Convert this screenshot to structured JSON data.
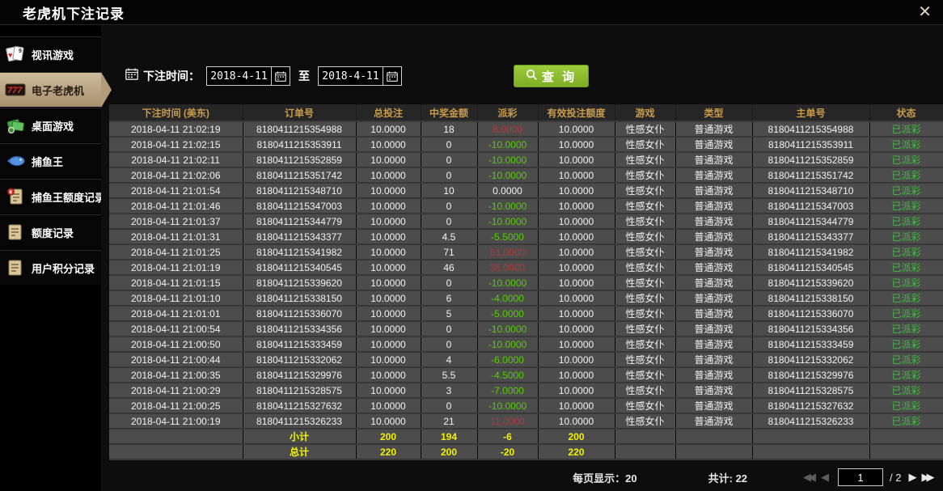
{
  "window": {
    "title": "老虎机下注记录",
    "close_label": "✕"
  },
  "sidebar": {
    "items": [
      {
        "label": "视讯游戏",
        "icon": "video-games-icon",
        "active": false
      },
      {
        "label": "电子老虎机",
        "icon": "slot-machine-icon",
        "active": true
      },
      {
        "label": "桌面游戏",
        "icon": "table-games-icon",
        "active": false
      },
      {
        "label": "捕鱼王",
        "icon": "fishing-king-icon",
        "active": false
      },
      {
        "label": "捕鱼王额度记录",
        "icon": "fishing-quota-record-icon",
        "active": false
      },
      {
        "label": "额度记录",
        "icon": "quota-record-icon",
        "active": false
      },
      {
        "label": "用户积分记录",
        "icon": "user-points-record-icon",
        "active": false
      }
    ]
  },
  "filter": {
    "label": "下注时间：",
    "from_date": "2018-4-11",
    "to_label": "至",
    "to_date": "2018-4-11",
    "query_label": "查 询"
  },
  "table": {
    "headers": [
      "下注时间 (美东)",
      "订单号",
      "总投注",
      "中奖金额",
      "派彩",
      "有效投注额度",
      "游戏",
      "类型",
      "主单号",
      "状态"
    ],
    "rows": [
      {
        "time": "2018-04-11 21:02:19",
        "order": "8180411215354988",
        "total_bet": "10.0000",
        "win": "18",
        "payout": "8.0000",
        "payout_color": "red",
        "valid_bet": "10.0000",
        "game": "性感女仆",
        "type": "普通游戏",
        "main_order": "8180411215354988",
        "status": "已派彩"
      },
      {
        "time": "2018-04-11 21:02:15",
        "order": "8180411215353911",
        "total_bet": "10.0000",
        "win": "0",
        "payout": "-10.0000",
        "payout_color": "green",
        "valid_bet": "10.0000",
        "game": "性感女仆",
        "type": "普通游戏",
        "main_order": "8180411215353911",
        "status": "已派彩"
      },
      {
        "time": "2018-04-11 21:02:11",
        "order": "8180411215352859",
        "total_bet": "10.0000",
        "win": "0",
        "payout": "-10.0000",
        "payout_color": "green",
        "valid_bet": "10.0000",
        "game": "性感女仆",
        "type": "普通游戏",
        "main_order": "8180411215352859",
        "status": "已派彩"
      },
      {
        "time": "2018-04-11 21:02:06",
        "order": "8180411215351742",
        "total_bet": "10.0000",
        "win": "0",
        "payout": "-10.0000",
        "payout_color": "green",
        "valid_bet": "10.0000",
        "game": "性感女仆",
        "type": "普通游戏",
        "main_order": "8180411215351742",
        "status": "已派彩"
      },
      {
        "time": "2018-04-11 21:01:54",
        "order": "8180411215348710",
        "total_bet": "10.0000",
        "win": "10",
        "payout": "0.0000",
        "payout_color": "white",
        "valid_bet": "10.0000",
        "game": "性感女仆",
        "type": "普通游戏",
        "main_order": "8180411215348710",
        "status": "已派彩"
      },
      {
        "time": "2018-04-11 21:01:46",
        "order": "8180411215347003",
        "total_bet": "10.0000",
        "win": "0",
        "payout": "-10.0000",
        "payout_color": "green",
        "valid_bet": "10.0000",
        "game": "性感女仆",
        "type": "普通游戏",
        "main_order": "8180411215347003",
        "status": "已派彩"
      },
      {
        "time": "2018-04-11 21:01:37",
        "order": "8180411215344779",
        "total_bet": "10.0000",
        "win": "0",
        "payout": "-10.0000",
        "payout_color": "green",
        "valid_bet": "10.0000",
        "game": "性感女仆",
        "type": "普通游戏",
        "main_order": "8180411215344779",
        "status": "已派彩"
      },
      {
        "time": "2018-04-11 21:01:31",
        "order": "8180411215343377",
        "total_bet": "10.0000",
        "win": "4.5",
        "payout": "-5.5000",
        "payout_color": "green",
        "valid_bet": "10.0000",
        "game": "性感女仆",
        "type": "普通游戏",
        "main_order": "8180411215343377",
        "status": "已派彩"
      },
      {
        "time": "2018-04-11 21:01:25",
        "order": "8180411215341982",
        "total_bet": "10.0000",
        "win": "71",
        "payout": "61.0000",
        "payout_color": "red",
        "valid_bet": "10.0000",
        "game": "性感女仆",
        "type": "普通游戏",
        "main_order": "8180411215341982",
        "status": "已派彩"
      },
      {
        "time": "2018-04-11 21:01:19",
        "order": "8180411215340545",
        "total_bet": "10.0000",
        "win": "46",
        "payout": "36.0000",
        "payout_color": "red",
        "valid_bet": "10.0000",
        "game": "性感女仆",
        "type": "普通游戏",
        "main_order": "8180411215340545",
        "status": "已派彩"
      },
      {
        "time": "2018-04-11 21:01:15",
        "order": "8180411215339620",
        "total_bet": "10.0000",
        "win": "0",
        "payout": "-10.0000",
        "payout_color": "green",
        "valid_bet": "10.0000",
        "game": "性感女仆",
        "type": "普通游戏",
        "main_order": "8180411215339620",
        "status": "已派彩"
      },
      {
        "time": "2018-04-11 21:01:10",
        "order": "8180411215338150",
        "total_bet": "10.0000",
        "win": "6",
        "payout": "-4.0000",
        "payout_color": "green",
        "valid_bet": "10.0000",
        "game": "性感女仆",
        "type": "普通游戏",
        "main_order": "8180411215338150",
        "status": "已派彩"
      },
      {
        "time": "2018-04-11 21:01:01",
        "order": "8180411215336070",
        "total_bet": "10.0000",
        "win": "5",
        "payout": "-5.0000",
        "payout_color": "green",
        "valid_bet": "10.0000",
        "game": "性感女仆",
        "type": "普通游戏",
        "main_order": "8180411215336070",
        "status": "已派彩"
      },
      {
        "time": "2018-04-11 21:00:54",
        "order": "8180411215334356",
        "total_bet": "10.0000",
        "win": "0",
        "payout": "-10.0000",
        "payout_color": "green",
        "valid_bet": "10.0000",
        "game": "性感女仆",
        "type": "普通游戏",
        "main_order": "8180411215334356",
        "status": "已派彩"
      },
      {
        "time": "2018-04-11 21:00:50",
        "order": "8180411215333459",
        "total_bet": "10.0000",
        "win": "0",
        "payout": "-10.0000",
        "payout_color": "green",
        "valid_bet": "10.0000",
        "game": "性感女仆",
        "type": "普通游戏",
        "main_order": "8180411215333459",
        "status": "已派彩"
      },
      {
        "time": "2018-04-11 21:00:44",
        "order": "8180411215332062",
        "total_bet": "10.0000",
        "win": "4",
        "payout": "-6.0000",
        "payout_color": "green",
        "valid_bet": "10.0000",
        "game": "性感女仆",
        "type": "普通游戏",
        "main_order": "8180411215332062",
        "status": "已派彩"
      },
      {
        "time": "2018-04-11 21:00:35",
        "order": "8180411215329976",
        "total_bet": "10.0000",
        "win": "5.5",
        "payout": "-4.5000",
        "payout_color": "green",
        "valid_bet": "10.0000",
        "game": "性感女仆",
        "type": "普通游戏",
        "main_order": "8180411215329976",
        "status": "已派彩"
      },
      {
        "time": "2018-04-11 21:00:29",
        "order": "8180411215328575",
        "total_bet": "10.0000",
        "win": "3",
        "payout": "-7.0000",
        "payout_color": "green",
        "valid_bet": "10.0000",
        "game": "性感女仆",
        "type": "普通游戏",
        "main_order": "8180411215328575",
        "status": "已派彩"
      },
      {
        "time": "2018-04-11 21:00:25",
        "order": "8180411215327632",
        "total_bet": "10.0000",
        "win": "0",
        "payout": "-10.0000",
        "payout_color": "green",
        "valid_bet": "10.0000",
        "game": "性感女仆",
        "type": "普通游戏",
        "main_order": "8180411215327632",
        "status": "已派彩"
      },
      {
        "time": "2018-04-11 21:00:19",
        "order": "8180411215326233",
        "total_bet": "10.0000",
        "win": "21",
        "payout": "11.0000",
        "payout_color": "red",
        "valid_bet": "10.0000",
        "game": "性感女仆",
        "type": "普通游戏",
        "main_order": "8180411215326233",
        "status": "已派彩"
      }
    ],
    "summary": [
      {
        "label": "小计",
        "total_bet": "200",
        "win": "194",
        "payout": "-6",
        "valid_bet": "200"
      },
      {
        "label": "总计",
        "total_bet": "220",
        "win": "200",
        "payout": "-20",
        "valid_bet": "220"
      }
    ]
  },
  "pagination": {
    "per_page_label": "每页显示：",
    "per_page_value": "20",
    "total_label": "共计:",
    "total_value": "22",
    "page": "1",
    "page_of": "/ 2"
  },
  "colors": {
    "payout_positive_red": "#b03a3a",
    "payout_negative_green": "#55cc00",
    "status_green": "#44bb44",
    "summary_yellow": "#f3f300",
    "header_gold": "#c79b4b",
    "active_sidebar_tan": "#b19b79",
    "query_button_green": "#8cbf2f"
  }
}
